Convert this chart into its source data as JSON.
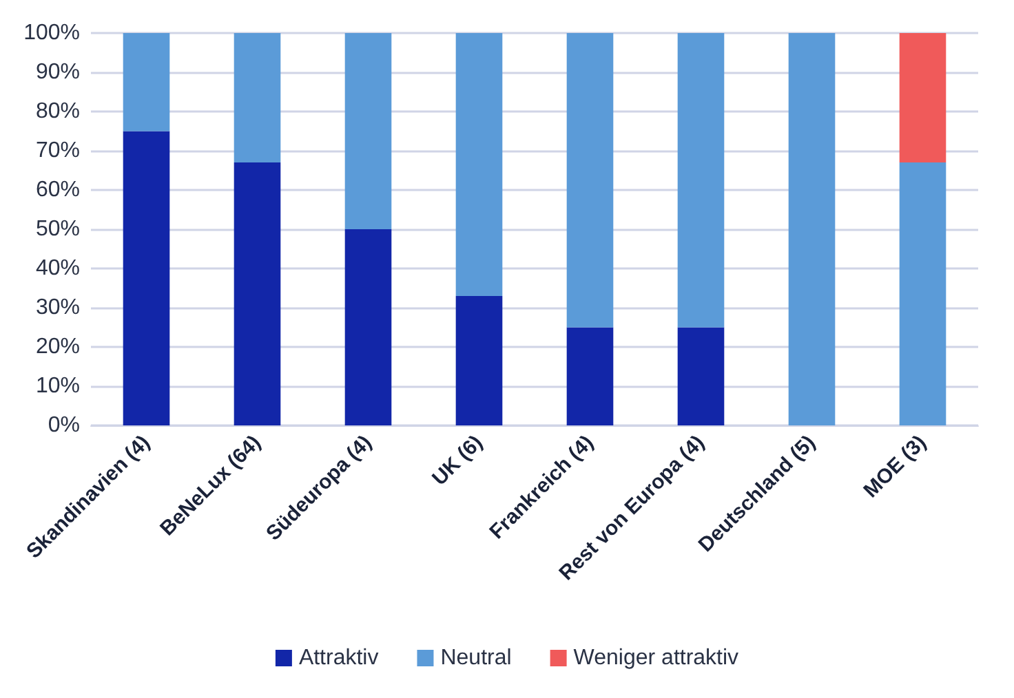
{
  "chart_data": {
    "type": "bar",
    "stacked": true,
    "categories": [
      "Skandinavien (4)",
      "BeNeLux (64)",
      "Südeuropa (4)",
      "UK (6)",
      "Frankreich (4)",
      "Rest von Europa (4)",
      "Deutschland (5)",
      "MOE (3)"
    ],
    "series": [
      {
        "name": "Attraktiv",
        "color": "#1226a8",
        "values": [
          75,
          67,
          50,
          33,
          25,
          25,
          0,
          0
        ]
      },
      {
        "name": "Neutral",
        "color": "#5b9bd8",
        "values": [
          25,
          33,
          50,
          67,
          75,
          75,
          100,
          67
        ]
      },
      {
        "name": "Weniger attraktiv",
        "color": "#f05a5a",
        "values": [
          0,
          0,
          0,
          0,
          0,
          0,
          0,
          33
        ]
      }
    ],
    "ylim": [
      0,
      100
    ],
    "yticks": [
      {
        "value": 0,
        "label": "0%"
      },
      {
        "value": 10,
        "label": "10%"
      },
      {
        "value": 20,
        "label": "20%"
      },
      {
        "value": 30,
        "label": "30%"
      },
      {
        "value": 40,
        "label": "40%"
      },
      {
        "value": 50,
        "label": "50%"
      },
      {
        "value": 60,
        "label": "60%"
      },
      {
        "value": 70,
        "label": "70%"
      },
      {
        "value": 80,
        "label": "80%"
      },
      {
        "value": 90,
        "label": "90%"
      },
      {
        "value": 100,
        "label": "100%"
      }
    ],
    "grid": "y",
    "legend": "bottom"
  }
}
